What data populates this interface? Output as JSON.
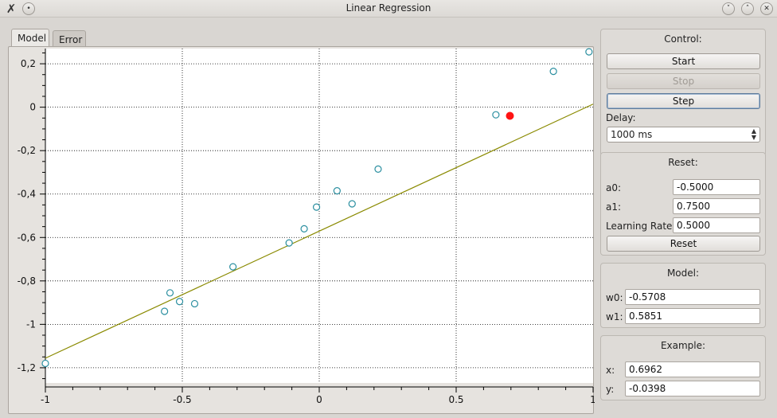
{
  "window": {
    "title": "Linear Regression"
  },
  "tabs": [
    {
      "label": "Model"
    },
    {
      "label": "Error"
    }
  ],
  "control": {
    "title": "Control:",
    "start": "Start",
    "stop": "Stop",
    "step": "Step",
    "delay_label": "Delay:",
    "delay_value": "1000 ms"
  },
  "reset": {
    "title": "Reset:",
    "a0_label": "a0:",
    "a0_value": "-0.5000",
    "a1_label": "a1:",
    "a1_value": "0.7500",
    "lr_label": "Learning Rate:",
    "lr_value": "0.5000",
    "button": "Reset"
  },
  "model": {
    "title": "Model:",
    "w0_label": "w0:",
    "w0_value": "-0.5708",
    "w1_label": "w1:",
    "w1_value": "0.5851"
  },
  "example": {
    "title": "Example:",
    "x_label": "x:",
    "x_value": "0.6962",
    "y_label": "y:",
    "y_value": "-0.0398"
  },
  "chart_data": {
    "type": "scatter",
    "xlim": [
      -1,
      1
    ],
    "ylim": [
      -1.27,
      0.27
    ],
    "x_ticks": [
      "-1",
      "-0.5",
      "0",
      "0.5",
      "1"
    ],
    "x_tick_values": [
      -1,
      -0.5,
      0,
      0.5,
      1
    ],
    "y_ticks": [
      "0,2",
      "0",
      "-0,2",
      "-0,4",
      "-0,6",
      "-0,8",
      "-1",
      "-1,2"
    ],
    "y_tick_values": [
      0.2,
      0,
      -0.2,
      -0.4,
      -0.6,
      -0.8,
      -1,
      -1.2
    ],
    "grid": true,
    "points": [
      {
        "x": -1.0,
        "y": -1.18
      },
      {
        "x": -0.565,
        "y": -0.94
      },
      {
        "x": -0.545,
        "y": -0.855
      },
      {
        "x": -0.51,
        "y": -0.895
      },
      {
        "x": -0.455,
        "y": -0.905
      },
      {
        "x": -0.315,
        "y": -0.735
      },
      {
        "x": -0.11,
        "y": -0.625
      },
      {
        "x": -0.055,
        "y": -0.56
      },
      {
        "x": -0.01,
        "y": -0.46
      },
      {
        "x": 0.065,
        "y": -0.385
      },
      {
        "x": 0.12,
        "y": -0.445
      },
      {
        "x": 0.215,
        "y": -0.285
      },
      {
        "x": 0.645,
        "y": -0.035
      },
      {
        "x": 0.855,
        "y": 0.165
      },
      {
        "x": 0.985,
        "y": 0.255
      }
    ],
    "highlight_point": {
      "x": 0.6962,
      "y": -0.0398
    },
    "line": {
      "w0": -0.5708,
      "w1": 0.5851
    },
    "colors": {
      "point": "#2b8fa0",
      "highlight": "#ff1414",
      "line": "#8a8a00"
    }
  }
}
